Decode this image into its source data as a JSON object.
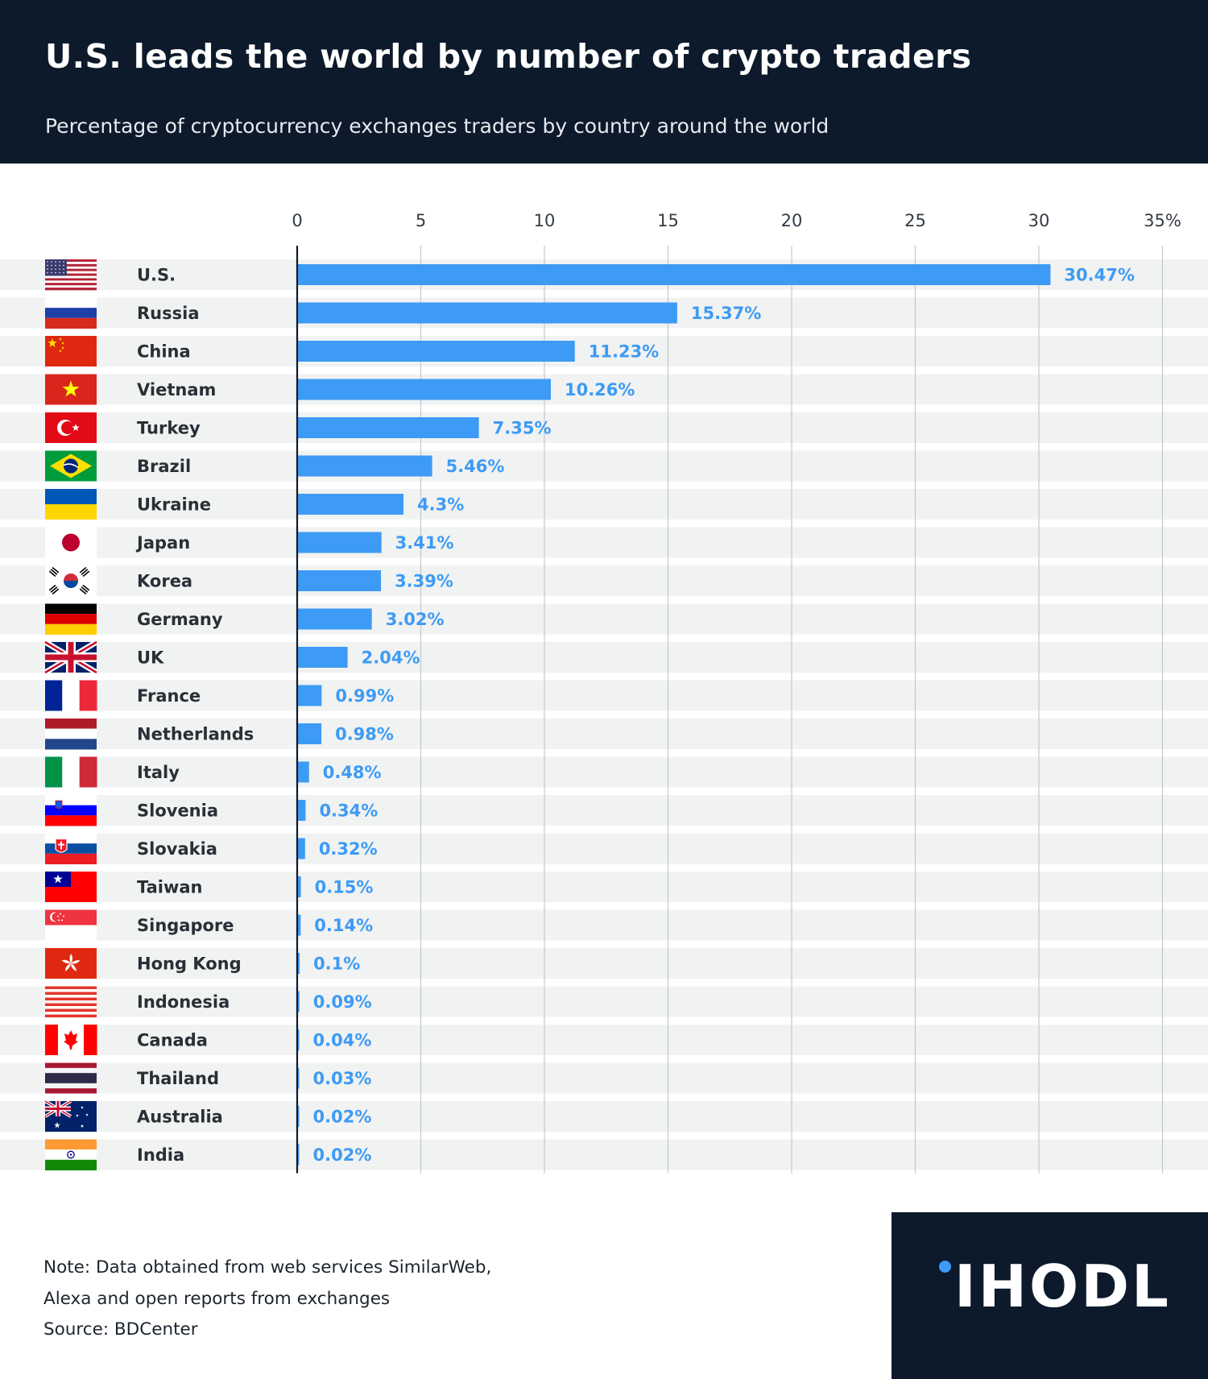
{
  "header": {
    "title": "U.S. leads the world by number of crypto traders",
    "subtitle": "Percentage of cryptocurrency exchanges traders by country around the world"
  },
  "colors": {
    "header_bg": "#0c1a2b",
    "bar": "#3d9bf5",
    "row_stripe": "#f1f2f2",
    "gridline": "#c5c8cc"
  },
  "chart_data": {
    "type": "bar",
    "orientation": "horizontal",
    "title": "U.S. leads the world by number of crypto traders",
    "subtitle": "Percentage of cryptocurrency exchanges traders by country around the world",
    "xlim": [
      0,
      35
    ],
    "ticks": [
      0,
      5,
      10,
      15,
      20,
      25,
      30,
      35
    ],
    "tick_labels": [
      "0",
      "5",
      "10",
      "15",
      "20",
      "25",
      "30",
      "35%"
    ],
    "grid": true,
    "categories": [
      "U.S.",
      "Russia",
      "China",
      "Vietnam",
      "Turkey",
      "Brazil",
      "Ukraine",
      "Japan",
      "Korea",
      "Germany",
      "UK",
      "France",
      "Netherlands",
      "Italy",
      "Slovenia",
      "Slovakia",
      "Taiwan",
      "Singapore",
      "Hong Kong",
      "Indonesia",
      "Canada",
      "Thailand",
      "Australia",
      "India"
    ],
    "values": [
      30.47,
      15.37,
      11.23,
      10.26,
      7.35,
      5.46,
      4.3,
      3.41,
      3.39,
      3.02,
      2.04,
      0.99,
      0.98,
      0.48,
      0.34,
      0.32,
      0.15,
      0.14,
      0.1,
      0.09,
      0.04,
      0.03,
      0.02,
      0.02
    ],
    "value_labels": [
      "30.47%",
      "15.37%",
      "11.23%",
      "10.26%",
      "7.35%",
      "5.46%",
      "4.3%",
      "3.41%",
      "3.39%",
      "3.02%",
      "2.04%",
      "0.99%",
      "0.98%",
      "0.48%",
      "0.34%",
      "0.32%",
      "0.15%",
      "0.14%",
      "0.1%",
      "0.09%",
      "0.04%",
      "0.03%",
      "0.02%",
      "0.02%"
    ],
    "flags": [
      "flag-us-icon",
      "flag-russia-icon",
      "flag-china-icon",
      "flag-vietnam-icon",
      "flag-turkey-icon",
      "flag-brazil-icon",
      "flag-ukraine-icon",
      "flag-japan-icon",
      "flag-korea-icon",
      "flag-germany-icon",
      "flag-uk-icon",
      "flag-france-icon",
      "flag-netherlands-icon",
      "flag-italy-icon",
      "flag-slovenia-icon",
      "flag-slovakia-icon",
      "flag-taiwan-icon",
      "flag-singapore-icon",
      "flag-hong-kong-icon",
      "flag-indonesia-icon",
      "flag-canada-icon",
      "flag-thailand-icon",
      "flag-australia-icon",
      "flag-india-icon"
    ]
  },
  "footer": {
    "note_line1": "Note: Data obtained from web services SimilarWeb,",
    "note_line2": "Alexa and open reports from exchanges",
    "source": "Source: BDCenter",
    "brand": "IHODL"
  }
}
